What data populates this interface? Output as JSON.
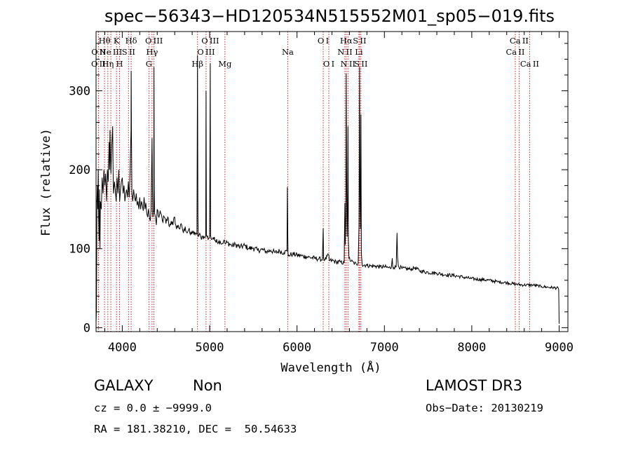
{
  "chart_data": {
    "type": "line",
    "title": "spec−56343−HD120534N515552M01_sp05−019.fits",
    "xlabel": "Wavelength (Å)",
    "ylabel": "Flux (relative)",
    "xlim": [
      3700,
      9100
    ],
    "ylim": [
      -5,
      375
    ],
    "xticks": [
      4000,
      5000,
      6000,
      7000,
      8000,
      9000
    ],
    "yticks": [
      0,
      100,
      200,
      300
    ],
    "grid": false,
    "line_color": "#000000",
    "marker_color": "#cc2222",
    "lines": [
      {
        "label": "O II",
        "wave": 3727,
        "row": 2
      },
      {
        "label": "O II",
        "wave": 3729,
        "row": 1
      },
      {
        "label": "Hθ",
        "wave": 3797,
        "row": 0
      },
      {
        "label": "Hη",
        "wave": 3835,
        "row": 2
      },
      {
        "label": "Ne III",
        "wave": 3869,
        "row": 1
      },
      {
        "label": "K",
        "wave": 3934,
        "row": 0
      },
      {
        "label": "H",
        "wave": 3969,
        "row": 2
      },
      {
        "label": "S II",
        "wave": 4072,
        "row": 1
      },
      {
        "label": "Hδ",
        "wave": 4102,
        "row": 0
      },
      {
        "label": "G",
        "wave": 4305,
        "row": 2
      },
      {
        "label": "Hγ",
        "wave": 4341,
        "row": 1
      },
      {
        "label": "O III",
        "wave": 4363,
        "row": 0
      },
      {
        "label": "Hβ",
        "wave": 4861,
        "row": 2
      },
      {
        "label": "O III",
        "wave": 4959,
        "row": 1
      },
      {
        "label": "O III",
        "wave": 5007,
        "row": 0
      },
      {
        "label": "Mg",
        "wave": 5175,
        "row": 2
      },
      {
        "label": "Na",
        "wave": 5894,
        "row": 1
      },
      {
        "label": "O I",
        "wave": 6300,
        "row": 0
      },
      {
        "label": "O I",
        "wave": 6364,
        "row": 2
      },
      {
        "label": "N II",
        "wave": 6548,
        "row": 1
      },
      {
        "label": "Hα",
        "wave": 6563,
        "row": 0
      },
      {
        "label": "N II",
        "wave": 6583,
        "row": 2
      },
      {
        "label": "Li",
        "wave": 6708,
        "row": 1
      },
      {
        "label": "S II",
        "wave": 6716,
        "row": 0
      },
      {
        "label": "S II",
        "wave": 6731,
        "row": 2
      },
      {
        "label": "Ca II",
        "wave": 8498,
        "row": 1
      },
      {
        "label": "Ca II",
        "wave": 8542,
        "row": 0
      },
      {
        "label": "Ca II",
        "wave": 8662,
        "row": 2
      }
    ],
    "spectrum": [
      [
        3700,
        5
      ],
      [
        3705,
        25
      ],
      [
        3710,
        160
      ],
      [
        3715,
        180
      ],
      [
        3720,
        150
      ],
      [
        3725,
        200
      ],
      [
        3730,
        140
      ],
      [
        3735,
        110
      ],
      [
        3740,
        175
      ],
      [
        3745,
        100
      ],
      [
        3750,
        160
      ],
      [
        3760,
        150
      ],
      [
        3770,
        190
      ],
      [
        3780,
        170
      ],
      [
        3790,
        200
      ],
      [
        3800,
        180
      ],
      [
        3810,
        195
      ],
      [
        3820,
        160
      ],
      [
        3830,
        200
      ],
      [
        3840,
        185
      ],
      [
        3850,
        235
      ],
      [
        3855,
        200
      ],
      [
        3860,
        250
      ],
      [
        3865,
        215
      ],
      [
        3870,
        195
      ],
      [
        3880,
        230
      ],
      [
        3890,
        255
      ],
      [
        3895,
        200
      ],
      [
        3900,
        170
      ],
      [
        3910,
        185
      ],
      [
        3920,
        175
      ],
      [
        3930,
        160
      ],
      [
        3940,
        190
      ],
      [
        3950,
        170
      ],
      [
        3960,
        200
      ],
      [
        3970,
        160
      ],
      [
        3980,
        175
      ],
      [
        3990,
        185
      ],
      [
        4000,
        190
      ],
      [
        4010,
        170
      ],
      [
        4020,
        180
      ],
      [
        4030,
        160
      ],
      [
        4040,
        170
      ],
      [
        4050,
        175
      ],
      [
        4060,
        165
      ],
      [
        4070,
        185
      ],
      [
        4080,
        165
      ],
      [
        4090,
        200
      ],
      [
        4100,
        250
      ],
      [
        4102,
        325
      ],
      [
        4105,
        245
      ],
      [
        4110,
        170
      ],
      [
        4120,
        160
      ],
      [
        4130,
        175
      ],
      [
        4140,
        165
      ],
      [
        4150,
        160
      ],
      [
        4160,
        170
      ],
      [
        4170,
        155
      ],
      [
        4180,
        160
      ],
      [
        4190,
        150
      ],
      [
        4200,
        165
      ],
      [
        4210,
        150
      ],
      [
        4220,
        160
      ],
      [
        4230,
        155
      ],
      [
        4240,
        148
      ],
      [
        4250,
        165
      ],
      [
        4260,
        150
      ],
      [
        4270,
        158
      ],
      [
        4280,
        145
      ],
      [
        4290,
        140
      ],
      [
        4300,
        150
      ],
      [
        4310,
        140
      ],
      [
        4320,
        135
      ],
      [
        4330,
        150
      ],
      [
        4341,
        240
      ],
      [
        4345,
        180
      ],
      [
        4350,
        140
      ],
      [
        4360,
        150
      ],
      [
        4363,
        330
      ],
      [
        4366,
        175
      ],
      [
        4370,
        145
      ],
      [
        4380,
        140
      ],
      [
        4390,
        130
      ],
      [
        4400,
        150
      ],
      [
        4420,
        140
      ],
      [
        4440,
        145
      ],
      [
        4460,
        135
      ],
      [
        4480,
        140
      ],
      [
        4500,
        132
      ],
      [
        4520,
        140
      ],
      [
        4540,
        128
      ],
      [
        4560,
        135
      ],
      [
        4580,
        130
      ],
      [
        4600,
        140
      ],
      [
        4620,
        125
      ],
      [
        4640,
        130
      ],
      [
        4660,
        125
      ],
      [
        4680,
        130
      ],
      [
        4700,
        120
      ],
      [
        4720,
        128
      ],
      [
        4740,
        120
      ],
      [
        4760,
        124
      ],
      [
        4780,
        118
      ],
      [
        4800,
        122
      ],
      [
        4820,
        118
      ],
      [
        4840,
        120
      ],
      [
        4855,
        118
      ],
      [
        4861,
        345
      ],
      [
        4866,
        140
      ],
      [
        4870,
        115
      ],
      [
        4880,
        118
      ],
      [
        4900,
        114
      ],
      [
        4920,
        116
      ],
      [
        4940,
        114
      ],
      [
        4955,
        116
      ],
      [
        4959,
        300
      ],
      [
        4963,
        118
      ],
      [
        4970,
        115
      ],
      [
        4990,
        113
      ],
      [
        5000,
        115
      ],
      [
        5007,
        335
      ],
      [
        5011,
        116
      ],
      [
        5020,
        112
      ],
      [
        5040,
        114
      ],
      [
        5060,
        110
      ],
      [
        5080,
        112
      ],
      [
        5100,
        108
      ],
      [
        5120,
        110
      ],
      [
        5140,
        106
      ],
      [
        5160,
        110
      ],
      [
        5180,
        106
      ],
      [
        5200,
        108
      ],
      [
        5250,
        104
      ],
      [
        5300,
        105
      ],
      [
        5350,
        102
      ],
      [
        5400,
        104
      ],
      [
        5450,
        100
      ],
      [
        5500,
        101
      ],
      [
        5550,
        98
      ],
      [
        5600,
        99
      ],
      [
        5650,
        96
      ],
      [
        5700,
        98
      ],
      [
        5750,
        95
      ],
      [
        5800,
        97
      ],
      [
        5850,
        95
      ],
      [
        5885,
        97
      ],
      [
        5890,
        178
      ],
      [
        5894,
        125
      ],
      [
        5898,
        90
      ],
      [
        5905,
        92
      ],
      [
        5950,
        93
      ],
      [
        6000,
        92
      ],
      [
        6050,
        91
      ],
      [
        6100,
        90
      ],
      [
        6150,
        89
      ],
      [
        6200,
        88
      ],
      [
        6250,
        87
      ],
      [
        6290,
        86
      ],
      [
        6300,
        126
      ],
      [
        6304,
        88
      ],
      [
        6320,
        86
      ],
      [
        6364,
        92
      ],
      [
        6370,
        85
      ],
      [
        6400,
        85
      ],
      [
        6450,
        83
      ],
      [
        6500,
        83
      ],
      [
        6540,
        82
      ],
      [
        6548,
        158
      ],
      [
        6552,
        105
      ],
      [
        6558,
        140
      ],
      [
        6563,
        322
      ],
      [
        6567,
        200
      ],
      [
        6573,
        115
      ],
      [
        6578,
        140
      ],
      [
        6583,
        255
      ],
      [
        6588,
        110
      ],
      [
        6595,
        88
      ],
      [
        6620,
        84
      ],
      [
        6650,
        82
      ],
      [
        6680,
        80
      ],
      [
        6700,
        82
      ],
      [
        6710,
        130
      ],
      [
        6716,
        330
      ],
      [
        6720,
        170
      ],
      [
        6726,
        125
      ],
      [
        6731,
        270
      ],
      [
        6736,
        95
      ],
      [
        6745,
        80
      ],
      [
        6800,
        79
      ],
      [
        6850,
        78
      ],
      [
        6900,
        78
      ],
      [
        6950,
        77
      ],
      [
        7000,
        77
      ],
      [
        7050,
        76
      ],
      [
        7080,
        76
      ],
      [
        7090,
        88
      ],
      [
        7095,
        78
      ],
      [
        7110,
        76
      ],
      [
        7135,
        77
      ],
      [
        7140,
        100
      ],
      [
        7145,
        120
      ],
      [
        7150,
        90
      ],
      [
        7160,
        78
      ],
      [
        7200,
        75
      ],
      [
        7300,
        74
      ],
      [
        7350,
        76
      ],
      [
        7400,
        72
      ],
      [
        7500,
        70
      ],
      [
        7600,
        69
      ],
      [
        7700,
        67
      ],
      [
        7800,
        66
      ],
      [
        7900,
        64
      ],
      [
        8000,
        62
      ],
      [
        8100,
        61
      ],
      [
        8200,
        60
      ],
      [
        8300,
        58
      ],
      [
        8400,
        57
      ],
      [
        8500,
        55
      ],
      [
        8600,
        54
      ],
      [
        8700,
        54
      ],
      [
        8800,
        52
      ],
      [
        8900,
        51
      ],
      [
        8990,
        50
      ],
      [
        8995,
        48
      ],
      [
        9000,
        5
      ]
    ]
  },
  "info": {
    "class_label": "GALAXY",
    "subclass_label": "Non",
    "cz_text": "cz = 0.0 ± −9999.0",
    "coords_text": "RA = 181.38210, DEC =  50.54633",
    "survey_label": "LAMOST DR3",
    "obs_date_text": "Obs−Date: 20130219"
  }
}
